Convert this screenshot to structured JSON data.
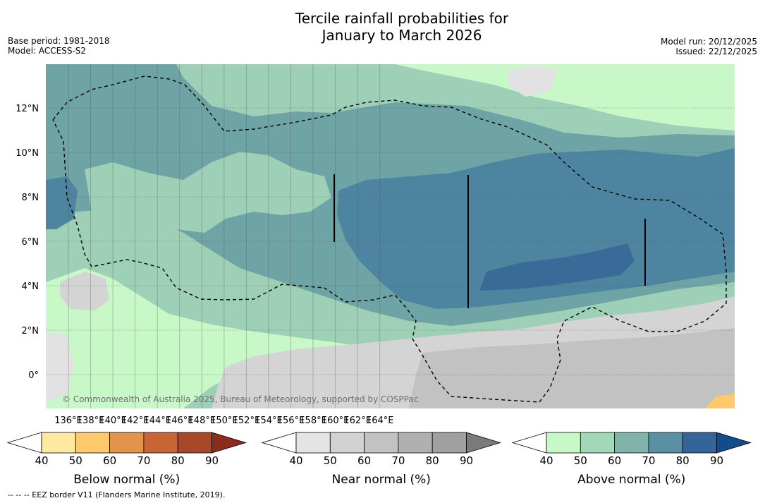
{
  "title_line1": "Tercile rainfall probabilities for",
  "title_line2": "January to March 2026",
  "meta_left": {
    "base_period": "Base period: 1981-2018",
    "model": "Model: ACCESS-S2"
  },
  "meta_right": {
    "model_run": "Model run: 20/12/2025",
    "issued": "Issued: 22/12/2025"
  },
  "map": {
    "lon_ticks": [
      "136°E",
      "138°E",
      "140°E",
      "142°E",
      "144°E",
      "146°E",
      "148°E",
      "150°E",
      "152°E",
      "154°E",
      "156°E",
      "158°E",
      "160°E",
      "162°E",
      "164°E"
    ],
    "lat_ticks": [
      "12°N",
      "10°N",
      "8°N",
      "6°N",
      "4°N",
      "2°N",
      "0°"
    ],
    "copyright": "© Commonwealth of Australia 2025, Bureau of Meteorology, supported by COSPPac",
    "colors": {
      "ocean_base": "#9ed0b8",
      "above_60": "#6fa4a6",
      "above_70": "#4d84a0",
      "above_80": "#3a6b98",
      "above_50": "#c8f8c8",
      "near_50": "#e2e2e2",
      "near_60": "#d4d4d4",
      "near_70": "#c2c2c2"
    }
  },
  "colorbars": [
    {
      "name": "Below normal (%)",
      "ticks": [
        "40",
        "50",
        "60",
        "70",
        "80",
        "90"
      ],
      "colors": [
        "#ffffff",
        "#fdeaa0",
        "#fdc96a",
        "#e2944a",
        "#c96434",
        "#a84828",
        "#8c2c1c"
      ]
    },
    {
      "name": "Near normal (%)",
      "ticks": [
        "40",
        "50",
        "60",
        "70",
        "80",
        "90"
      ],
      "colors": [
        "#ffffff",
        "#e4e4e4",
        "#d2d2d2",
        "#c2c2c2",
        "#b0b0b0",
        "#a0a0a0",
        "#7a7a7a"
      ]
    },
    {
      "name": "Above normal (%)",
      "ticks": [
        "40",
        "50",
        "60",
        "70",
        "80",
        "90"
      ],
      "colors": [
        "#ffffff",
        "#c8f8c8",
        "#a2d8b8",
        "#80b4a8",
        "#5a90a4",
        "#34649a",
        "#134c8c"
      ]
    }
  ],
  "footnote": "--  --  -- EEZ border V11 (Flanders Marine Institute, 2019)."
}
